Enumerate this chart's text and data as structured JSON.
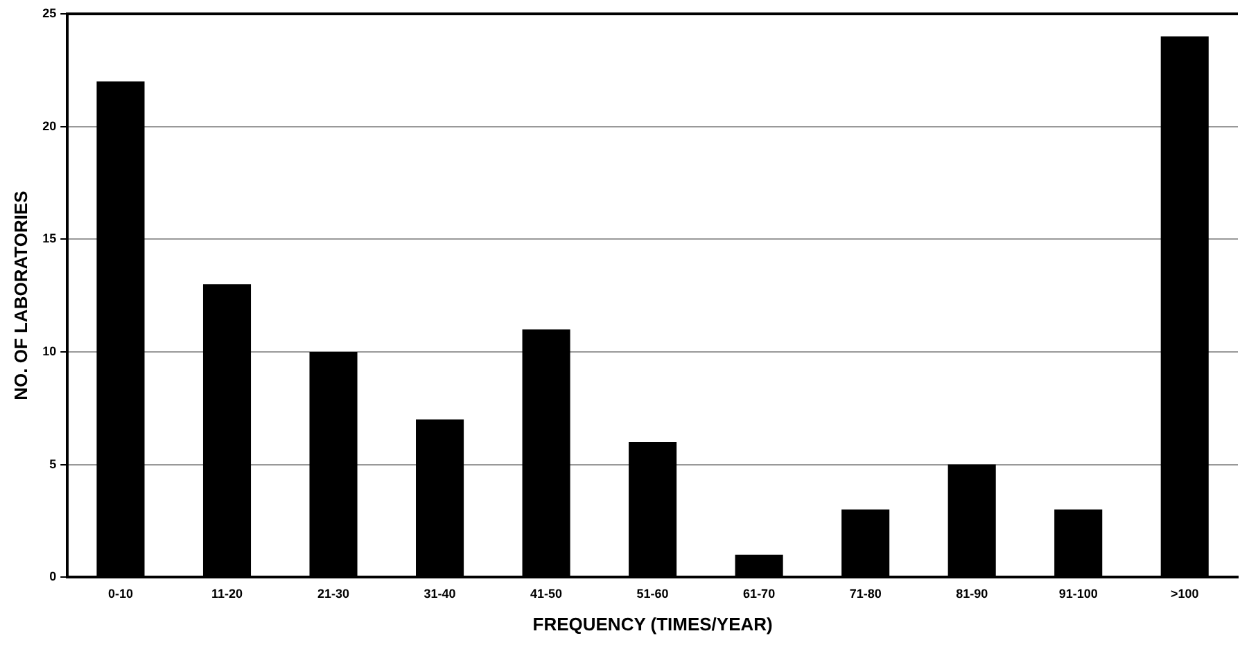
{
  "chart_data": {
    "type": "bar",
    "xlabel": "FREQUENCY (TIMES/YEAR)",
    "ylabel": "NO. OF LABORATORIES",
    "categories": [
      "0-10",
      "11-20",
      "21-30",
      "31-40",
      "41-50",
      "51-60",
      "61-70",
      "71-80",
      "81-90",
      "91-100",
      ">100"
    ],
    "values": [
      22,
      13,
      10,
      7,
      11,
      6,
      1,
      3,
      5,
      3,
      24
    ],
    "color": "#000000",
    "ylim": [
      0,
      25
    ],
    "yticks": [
      0,
      5,
      10,
      15,
      20,
      25
    ],
    "grid": "y",
    "legend": false
  }
}
